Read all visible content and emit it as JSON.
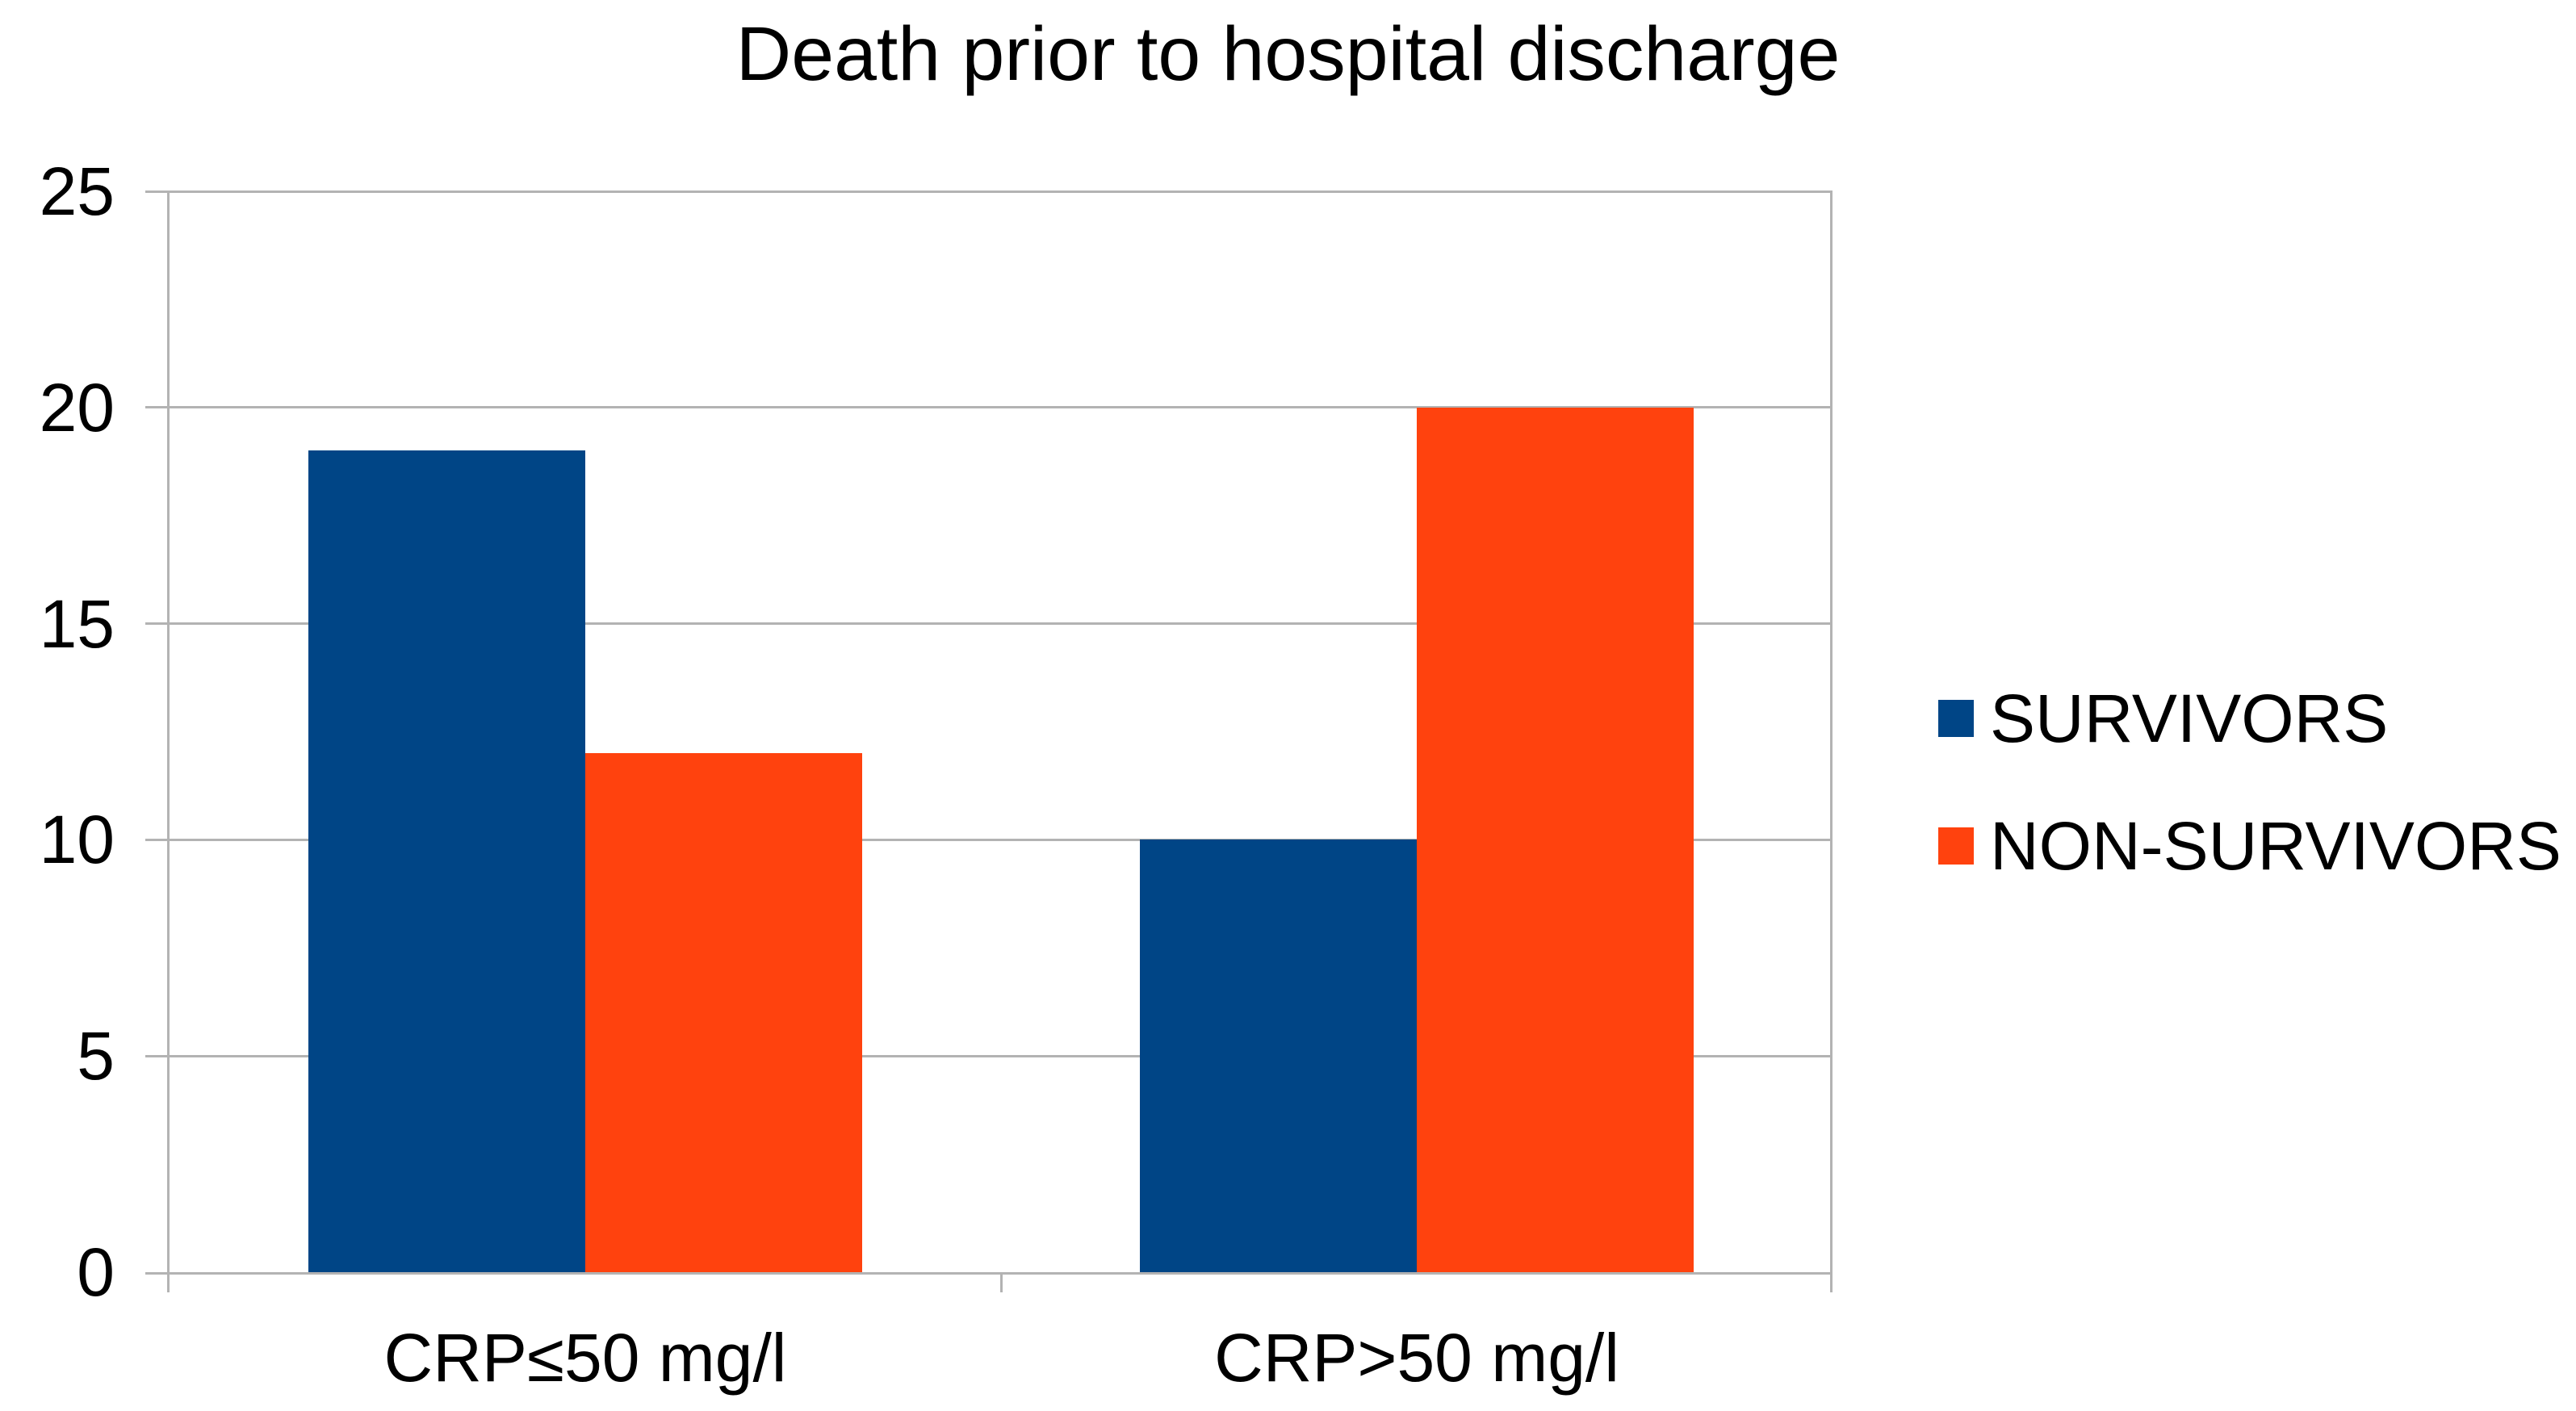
{
  "chart_data": {
    "type": "bar",
    "title": "Death prior to hospital discharge",
    "categories": [
      "CRP≤50 mg/l",
      "CRP>50 mg/l"
    ],
    "series": [
      {
        "name": "SURVIVORS",
        "color": "#004586",
        "values": [
          19,
          10
        ]
      },
      {
        "name": "NON-SURVIVORS",
        "color": "#FF420E",
        "values": [
          12,
          20
        ]
      }
    ],
    "xlabel": "",
    "ylabel": "",
    "ylim": [
      0,
      25
    ],
    "yticks": [
      0,
      5,
      10,
      15,
      20,
      25
    ],
    "grid": true,
    "legend_position": "right"
  },
  "colors": {
    "gridline": "#b3b3b3",
    "text": "#000000",
    "background": "#ffffff"
  }
}
